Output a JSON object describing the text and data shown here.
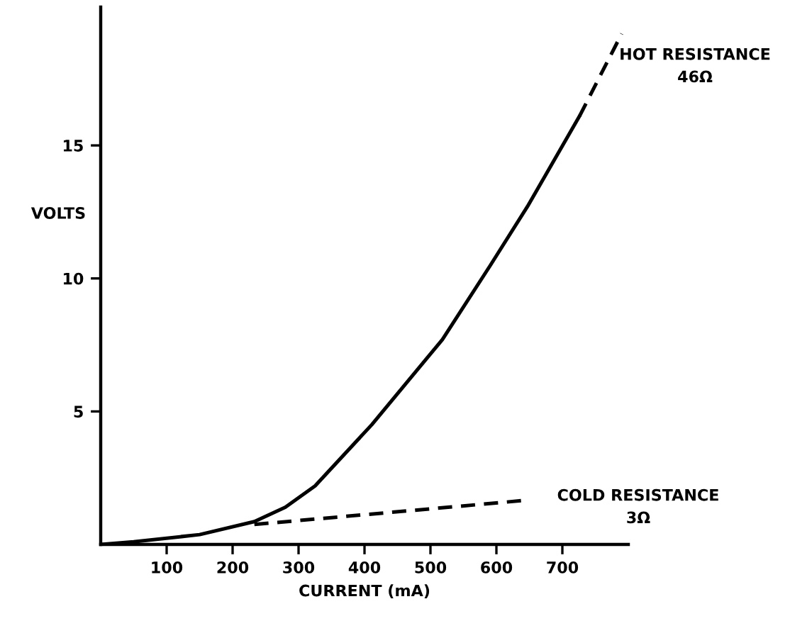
{
  "chart_data": {
    "type": "line",
    "xlabel": "CURRENT (mA)",
    "ylabel": "VOLTS",
    "xlim": [
      0,
      800
    ],
    "ylim": [
      0,
      20.2
    ],
    "xticks": [
      100,
      200,
      300,
      400,
      500,
      600,
      700
    ],
    "yticks": [
      5,
      10,
      15
    ],
    "grid": false,
    "legend": false,
    "marker": "none",
    "series": [
      {
        "color": "#000000",
        "line_style": "solid",
        "x": [
          0,
          50,
          150,
          233,
          280,
          325,
          411,
          518,
          591,
          647,
          726
        ],
        "values": [
          0,
          0.1,
          0.37,
          0.86,
          1.4,
          2.2,
          4.5,
          7.7,
          10.5,
          12.7,
          16.1
        ]
      },
      {
        "color": "#000000",
        "line_style": "dashed",
        "x": [
          726,
          790
        ],
        "values": [
          16.1,
          19.2
        ]
      },
      {
        "color": "#000000",
        "line_style": "dashed",
        "x": [
          233,
          645
        ],
        "values": [
          0.75,
          1.66
        ]
      }
    ],
    "annotations": [
      "HOT RESISTANCE\n46Ω",
      "COLD RESISTANCE\n3Ω"
    ]
  }
}
